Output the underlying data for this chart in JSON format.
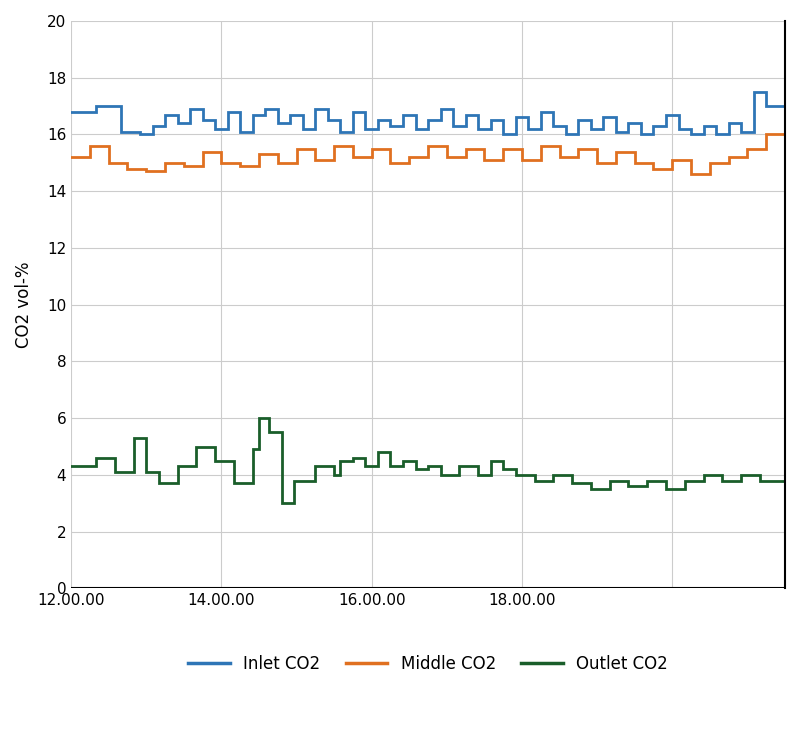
{
  "title": "",
  "ylabel": "CO2 vol-%",
  "xlabel": "",
  "xlim_min": 0,
  "xlim_max": 570,
  "ylim": [
    0,
    20
  ],
  "yticks": [
    0,
    2,
    4,
    6,
    8,
    10,
    12,
    14,
    16,
    18,
    20
  ],
  "xtick_labels": [
    "12.00.00",
    "14.00.00",
    "16.00.00",
    "18.00.00",
    ""
  ],
  "xtick_positions": [
    0,
    120,
    240,
    360,
    480
  ],
  "bg_color": "#ffffff",
  "grid_color": "#cccccc",
  "inlet_color": "#2e75b6",
  "middle_color": "#e07020",
  "outlet_color": "#1a5e2a",
  "line_width": 2.0,
  "legend_labels": [
    "Inlet CO2",
    "Middle CO2",
    "Outlet CO2"
  ],
  "inlet_x": [
    0,
    20,
    20,
    40,
    40,
    55,
    55,
    65,
    65,
    75,
    75,
    85,
    85,
    95,
    95,
    105,
    105,
    115,
    115,
    125,
    125,
    135,
    135,
    145,
    145,
    155,
    155,
    165,
    165,
    175,
    175,
    185,
    185,
    195,
    195,
    205,
    205,
    215,
    215,
    225,
    225,
    235,
    235,
    245,
    245,
    255,
    255,
    265,
    265,
    275,
    275,
    285,
    285,
    295,
    295,
    305,
    305,
    315,
    315,
    325,
    325,
    335,
    335,
    345,
    345,
    355,
    355,
    365,
    365,
    375,
    375,
    385,
    385,
    395,
    395,
    405,
    405,
    415,
    415,
    425,
    425,
    435,
    435,
    445,
    445,
    455,
    455,
    465,
    465,
    475,
    475,
    485,
    485,
    495,
    495,
    505,
    505,
    515,
    515,
    525,
    525,
    535,
    535,
    545,
    545,
    555,
    555,
    570
  ],
  "inlet_y": [
    16.8,
    16.8,
    17.0,
    17.0,
    16.1,
    16.1,
    16.0,
    16.0,
    16.3,
    16.3,
    16.7,
    16.7,
    16.4,
    16.4,
    16.9,
    16.9,
    16.5,
    16.5,
    16.2,
    16.2,
    16.8,
    16.8,
    16.1,
    16.1,
    16.7,
    16.7,
    16.9,
    16.9,
    16.4,
    16.4,
    16.7,
    16.7,
    16.2,
    16.2,
    16.9,
    16.9,
    16.5,
    16.5,
    16.1,
    16.1,
    16.8,
    16.8,
    16.2,
    16.2,
    16.5,
    16.5,
    16.3,
    16.3,
    16.7,
    16.7,
    16.2,
    16.2,
    16.5,
    16.5,
    16.9,
    16.9,
    16.3,
    16.3,
    16.7,
    16.7,
    16.2,
    16.2,
    16.5,
    16.5,
    16.0,
    16.0,
    16.6,
    16.6,
    16.2,
    16.2,
    16.8,
    16.8,
    16.3,
    16.3,
    16.0,
    16.0,
    16.5,
    16.5,
    16.2,
    16.2,
    16.6,
    16.6,
    16.1,
    16.1,
    16.4,
    16.4,
    16.0,
    16.0,
    16.3,
    16.3,
    16.7,
    16.7,
    16.2,
    16.2,
    16.0,
    16.0,
    16.3,
    16.3,
    16.0,
    16.0,
    16.4,
    16.4,
    16.1,
    16.1,
    17.5,
    17.5,
    17.0,
    17.0
  ],
  "middle_x": [
    0,
    15,
    15,
    30,
    30,
    45,
    45,
    60,
    60,
    75,
    75,
    90,
    90,
    105,
    105,
    120,
    120,
    135,
    135,
    150,
    150,
    165,
    165,
    180,
    180,
    195,
    195,
    210,
    210,
    225,
    225,
    240,
    240,
    255,
    255,
    270,
    270,
    285,
    285,
    300,
    300,
    315,
    315,
    330,
    330,
    345,
    345,
    360,
    360,
    375,
    375,
    390,
    390,
    405,
    405,
    420,
    420,
    435,
    435,
    450,
    450,
    465,
    465,
    480,
    480,
    495,
    495,
    510,
    510,
    525,
    525,
    540,
    540,
    555,
    555,
    570
  ],
  "middle_y": [
    15.2,
    15.2,
    15.6,
    15.6,
    15.0,
    15.0,
    14.8,
    14.8,
    14.7,
    14.7,
    15.0,
    15.0,
    14.9,
    14.9,
    15.4,
    15.4,
    15.0,
    15.0,
    14.9,
    14.9,
    15.3,
    15.3,
    15.0,
    15.0,
    15.5,
    15.5,
    15.1,
    15.1,
    15.6,
    15.6,
    15.2,
    15.2,
    15.5,
    15.5,
    15.0,
    15.0,
    15.2,
    15.2,
    15.6,
    15.6,
    15.2,
    15.2,
    15.5,
    15.5,
    15.1,
    15.1,
    15.5,
    15.5,
    15.1,
    15.1,
    15.6,
    15.6,
    15.2,
    15.2,
    15.5,
    15.5,
    15.0,
    15.0,
    15.4,
    15.4,
    15.0,
    15.0,
    14.8,
    14.8,
    15.1,
    15.1,
    14.6,
    14.6,
    15.0,
    15.0,
    15.2,
    15.2,
    15.5,
    15.5,
    16.0,
    16.0
  ],
  "outlet_x": [
    0,
    20,
    20,
    35,
    35,
    50,
    50,
    60,
    60,
    70,
    70,
    85,
    85,
    100,
    100,
    115,
    115,
    130,
    130,
    145,
    145,
    150,
    150,
    158,
    158,
    168,
    168,
    178,
    178,
    195,
    195,
    210,
    210,
    215,
    215,
    225,
    225,
    235,
    235,
    245,
    245,
    255,
    255,
    265,
    265,
    275,
    275,
    285,
    285,
    295,
    295,
    310,
    310,
    325,
    325,
    335,
    335,
    345,
    345,
    355,
    355,
    370,
    370,
    385,
    385,
    400,
    400,
    415,
    415,
    430,
    430,
    445,
    445,
    460,
    460,
    475,
    475,
    490,
    490,
    505,
    505,
    520,
    520,
    535,
    535,
    550,
    550,
    570
  ],
  "outlet_y": [
    4.3,
    4.3,
    4.6,
    4.6,
    4.1,
    4.1,
    5.3,
    5.3,
    4.1,
    4.1,
    3.7,
    3.7,
    4.3,
    4.3,
    5.0,
    5.0,
    4.5,
    4.5,
    3.7,
    3.7,
    4.9,
    4.9,
    6.0,
    6.0,
    5.5,
    5.5,
    3.0,
    3.0,
    3.8,
    3.8,
    4.3,
    4.3,
    4.0,
    4.0,
    4.5,
    4.5,
    4.6,
    4.6,
    4.3,
    4.3,
    4.8,
    4.8,
    4.3,
    4.3,
    4.5,
    4.5,
    4.2,
    4.2,
    4.3,
    4.3,
    4.0,
    4.0,
    4.3,
    4.3,
    4.0,
    4.0,
    4.5,
    4.5,
    4.2,
    4.2,
    4.0,
    4.0,
    3.8,
    3.8,
    4.0,
    4.0,
    3.7,
    3.7,
    3.5,
    3.5,
    3.8,
    3.8,
    3.6,
    3.6,
    3.8,
    3.8,
    3.5,
    3.5,
    3.8,
    3.8,
    4.0,
    4.0,
    3.8,
    3.8,
    4.0,
    4.0,
    3.8,
    3.8
  ]
}
